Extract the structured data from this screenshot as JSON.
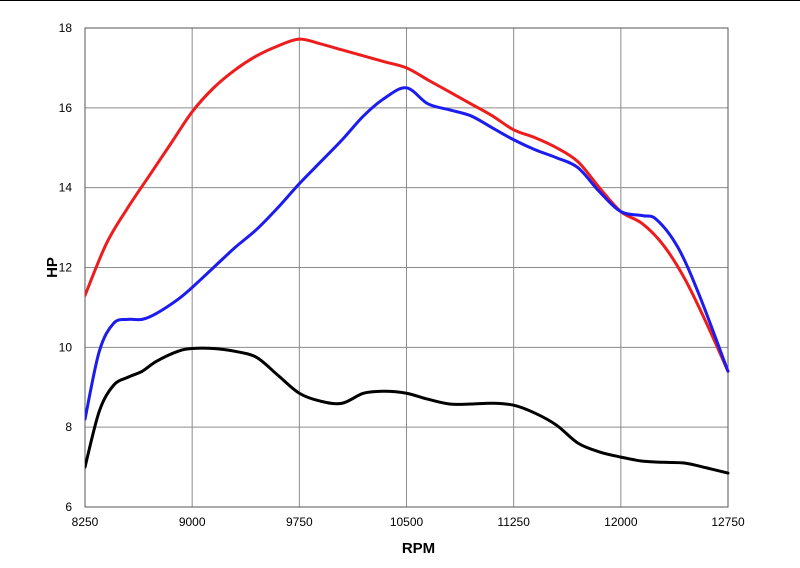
{
  "chart_data": {
    "type": "line",
    "title": "",
    "xlabel": "RPM",
    "ylabel": "HP",
    "xlim": [
      8250,
      12750
    ],
    "ylim": [
      6,
      18
    ],
    "x_ticks": [
      "8250",
      "9000",
      "9750",
      "10500",
      "11250",
      "12000",
      "12750"
    ],
    "y_ticks": [
      "6",
      "8",
      "10",
      "12",
      "14",
      "16",
      "18"
    ],
    "grid": true,
    "legend": "none",
    "series": [
      {
        "color": "#ee1c1c",
        "points": [
          [
            8250,
            11.3
          ],
          [
            8400,
            12.6
          ],
          [
            8550,
            13.5
          ],
          [
            8700,
            14.3
          ],
          [
            8850,
            15.1
          ],
          [
            9000,
            15.9
          ],
          [
            9150,
            16.5
          ],
          [
            9300,
            16.95
          ],
          [
            9450,
            17.3
          ],
          [
            9600,
            17.55
          ],
          [
            9750,
            17.72
          ],
          [
            9900,
            17.6
          ],
          [
            10050,
            17.45
          ],
          [
            10200,
            17.3
          ],
          [
            10350,
            17.15
          ],
          [
            10500,
            17.0
          ],
          [
            10650,
            16.7
          ],
          [
            10800,
            16.4
          ],
          [
            10950,
            16.1
          ],
          [
            11100,
            15.8
          ],
          [
            11250,
            15.45
          ],
          [
            11400,
            15.25
          ],
          [
            11550,
            15.0
          ],
          [
            11700,
            14.65
          ],
          [
            11850,
            14.0
          ],
          [
            12000,
            13.4
          ],
          [
            12150,
            13.1
          ],
          [
            12300,
            12.55
          ],
          [
            12450,
            11.7
          ],
          [
            12600,
            10.6
          ],
          [
            12750,
            9.4
          ]
        ]
      },
      {
        "color": "#1c1cee",
        "points": [
          [
            8250,
            8.2
          ],
          [
            8350,
            9.9
          ],
          [
            8450,
            10.6
          ],
          [
            8550,
            10.7
          ],
          [
            8650,
            10.7
          ],
          [
            8750,
            10.85
          ],
          [
            8900,
            11.2
          ],
          [
            9000,
            11.5
          ],
          [
            9150,
            12.0
          ],
          [
            9300,
            12.5
          ],
          [
            9450,
            12.95
          ],
          [
            9600,
            13.5
          ],
          [
            9750,
            14.1
          ],
          [
            9900,
            14.65
          ],
          [
            10050,
            15.2
          ],
          [
            10200,
            15.8
          ],
          [
            10350,
            16.25
          ],
          [
            10500,
            16.5
          ],
          [
            10650,
            16.1
          ],
          [
            10800,
            15.95
          ],
          [
            10950,
            15.8
          ],
          [
            11100,
            15.5
          ],
          [
            11250,
            15.2
          ],
          [
            11400,
            14.95
          ],
          [
            11550,
            14.75
          ],
          [
            11700,
            14.5
          ],
          [
            11850,
            13.9
          ],
          [
            12000,
            13.4
          ],
          [
            12150,
            13.3
          ],
          [
            12250,
            13.2
          ],
          [
            12400,
            12.5
          ],
          [
            12550,
            11.3
          ],
          [
            12750,
            9.4
          ]
        ]
      },
      {
        "color": "#000000",
        "points": [
          [
            8250,
            7.0
          ],
          [
            8350,
            8.4
          ],
          [
            8450,
            9.05
          ],
          [
            8550,
            9.25
          ],
          [
            8650,
            9.4
          ],
          [
            8750,
            9.65
          ],
          [
            8900,
            9.9
          ],
          [
            9000,
            9.97
          ],
          [
            9150,
            9.97
          ],
          [
            9300,
            9.9
          ],
          [
            9450,
            9.75
          ],
          [
            9600,
            9.3
          ],
          [
            9750,
            8.85
          ],
          [
            9900,
            8.65
          ],
          [
            10050,
            8.6
          ],
          [
            10200,
            8.85
          ],
          [
            10350,
            8.9
          ],
          [
            10500,
            8.85
          ],
          [
            10650,
            8.7
          ],
          [
            10800,
            8.58
          ],
          [
            10950,
            8.58
          ],
          [
            11100,
            8.6
          ],
          [
            11250,
            8.55
          ],
          [
            11400,
            8.35
          ],
          [
            11550,
            8.05
          ],
          [
            11700,
            7.6
          ],
          [
            11850,
            7.38
          ],
          [
            12000,
            7.25
          ],
          [
            12150,
            7.15
          ],
          [
            12300,
            7.12
          ],
          [
            12450,
            7.1
          ],
          [
            12600,
            6.98
          ],
          [
            12750,
            6.85
          ]
        ]
      }
    ]
  }
}
